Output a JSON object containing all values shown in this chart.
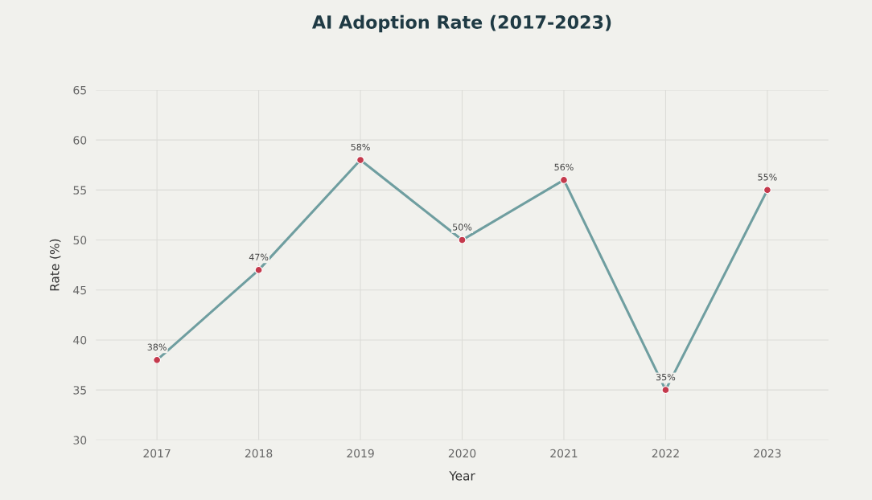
{
  "chart_data": {
    "type": "line",
    "title": "AI Adoption Rate (2017-2023)",
    "xlabel": "Year",
    "ylabel": "Rate (%)",
    "categories": [
      "2017",
      "2018",
      "2019",
      "2020",
      "2021",
      "2022",
      "2023"
    ],
    "series": [
      {
        "color": "#6f9ea0",
        "values": [
          38,
          47,
          58,
          50,
          56,
          35,
          55
        ],
        "marker": "none"
      },
      {
        "type": "scatter",
        "color": "#c4394c",
        "values": [
          38,
          47,
          58,
          50,
          56,
          35,
          55
        ],
        "marker": "circle",
        "value_labels": [
          "38%",
          "47%",
          "58%",
          "50%",
          "56%",
          "35%",
          "55%"
        ]
      }
    ],
    "ylim": [
      30,
      65
    ],
    "yticks": [
      30,
      35,
      40,
      45,
      50,
      55,
      60,
      65
    ],
    "grid": true,
    "legend": false
  }
}
